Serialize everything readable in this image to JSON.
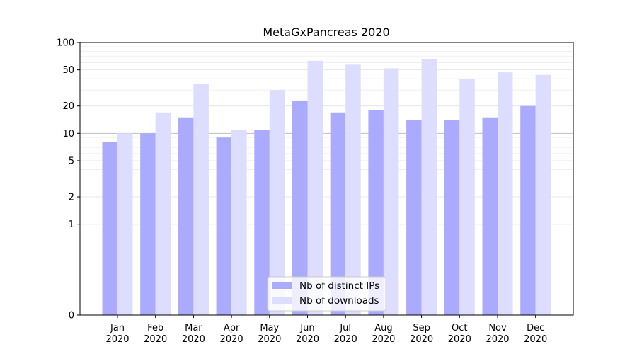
{
  "chart_data": {
    "type": "bar",
    "title": "MetaGxPancreas 2020",
    "xlabel": "",
    "ylabel": "",
    "y_scale": "symlog",
    "ylim": [
      0,
      100
    ],
    "yticks": [
      0,
      1,
      2,
      5,
      10,
      20,
      50,
      100
    ],
    "grid": true,
    "legend_position": "bottom-center",
    "categories": [
      [
        "Jan",
        "2020"
      ],
      [
        "Feb",
        "2020"
      ],
      [
        "Mar",
        "2020"
      ],
      [
        "Apr",
        "2020"
      ],
      [
        "May",
        "2020"
      ],
      [
        "Jun",
        "2020"
      ],
      [
        "Jul",
        "2020"
      ],
      [
        "Aug",
        "2020"
      ],
      [
        "Sep",
        "2020"
      ],
      [
        "Oct",
        "2020"
      ],
      [
        "Nov",
        "2020"
      ],
      [
        "Dec",
        "2020"
      ]
    ],
    "series": [
      {
        "name": "Nb of distinct IPs",
        "color": "#aaaaff",
        "values": [
          8,
          10,
          15,
          9,
          11,
          23,
          17,
          18,
          14,
          14,
          15,
          20
        ]
      },
      {
        "name": "Nb of downloads",
        "color": "#ddddff",
        "values": [
          10,
          17,
          35,
          11,
          30,
          63,
          57,
          52,
          66,
          40,
          47,
          44
        ]
      }
    ]
  }
}
